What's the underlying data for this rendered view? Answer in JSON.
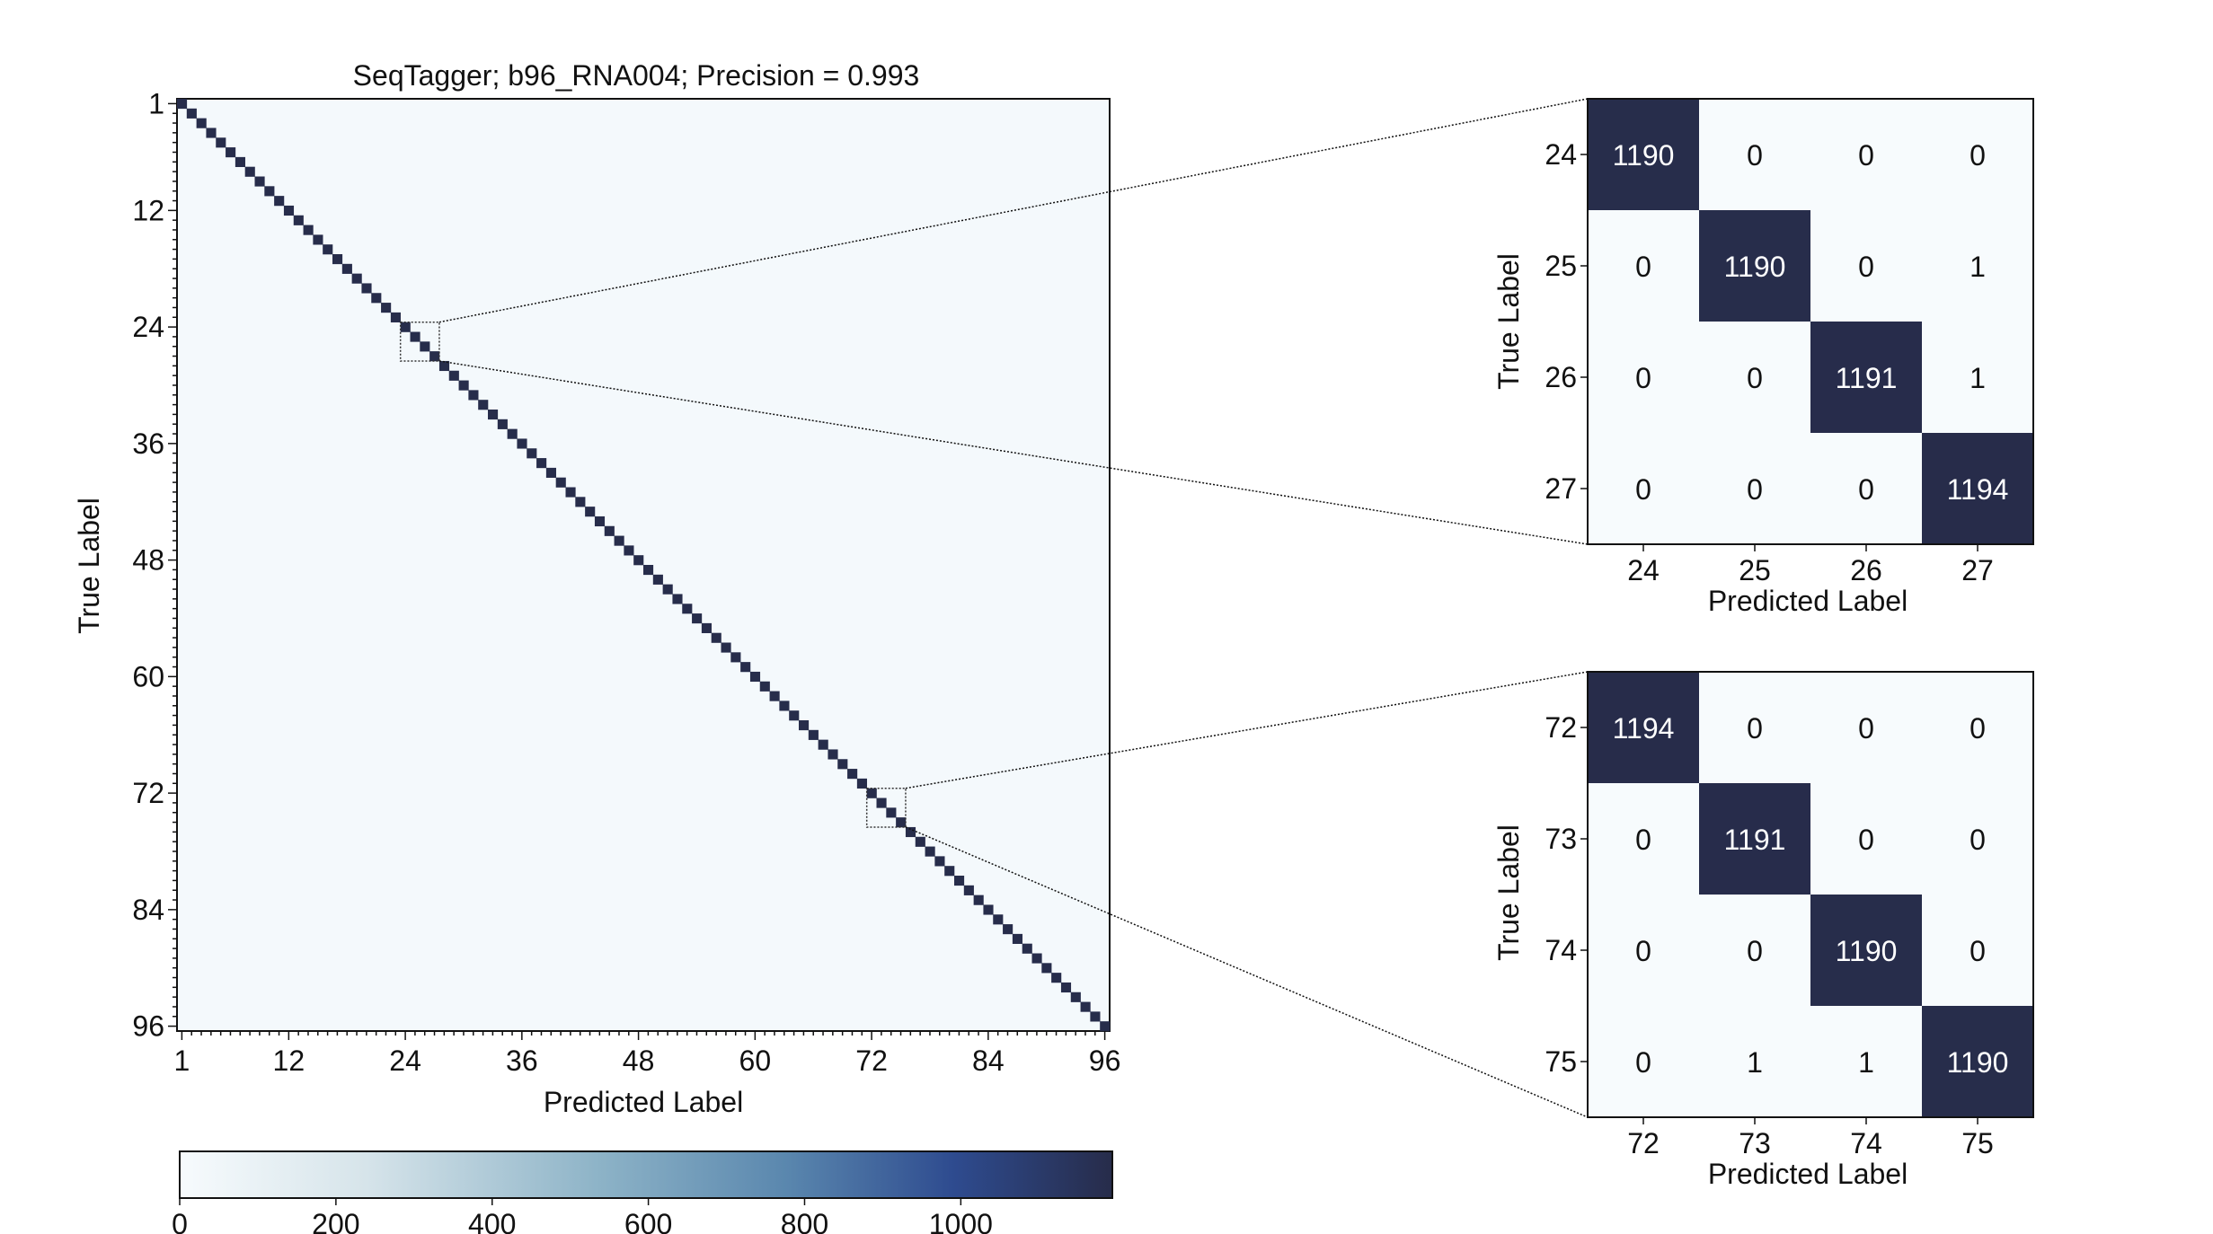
{
  "chart_data": [
    {
      "type": "heatmap",
      "name": "full",
      "title": "SeqTagger; b96_RNA004; Precision = 0.993",
      "xlabel": "Predicted Label",
      "ylabel": "True Label",
      "n_classes": 96,
      "tick_labels": [
        "1",
        "12",
        "24",
        "36",
        "48",
        "60",
        "72",
        "84",
        "96"
      ],
      "tick_values": [
        1,
        12,
        24,
        36,
        48,
        60,
        72,
        84,
        96
      ],
      "diagonal_approx": 1190,
      "off_diagonal_approx": 0,
      "zoom_regions": [
        {
          "from": 24,
          "to": 27
        },
        {
          "from": 72,
          "to": 75
        }
      ]
    },
    {
      "type": "heatmap",
      "name": "zoom-24-27",
      "xlabel": "Predicted Label",
      "ylabel": "True Label",
      "labels": [
        "24",
        "25",
        "26",
        "27"
      ],
      "matrix": [
        [
          1190,
          0,
          0,
          0
        ],
        [
          0,
          1190,
          0,
          1
        ],
        [
          0,
          0,
          1191,
          1
        ],
        [
          0,
          0,
          0,
          1194
        ]
      ]
    },
    {
      "type": "heatmap",
      "name": "zoom-72-75",
      "xlabel": "Predicted Label",
      "ylabel": "True Label",
      "labels": [
        "72",
        "73",
        "74",
        "75"
      ],
      "matrix": [
        [
          1194,
          0,
          0,
          0
        ],
        [
          0,
          1191,
          0,
          0
        ],
        [
          0,
          0,
          1190,
          0
        ],
        [
          0,
          1,
          1,
          1190
        ]
      ]
    }
  ],
  "colorbar": {
    "min": 0,
    "max": 1194,
    "ticks": [
      0,
      200,
      400,
      600,
      800,
      1000
    ],
    "tick_labels": [
      "0",
      "200",
      "400",
      "600",
      "800",
      "1000"
    ],
    "colors": [
      "#f7fbfd",
      "#bcd2dc",
      "#8db3c7",
      "#5a87ae",
      "#2e4b8f",
      "#272c4a"
    ]
  }
}
